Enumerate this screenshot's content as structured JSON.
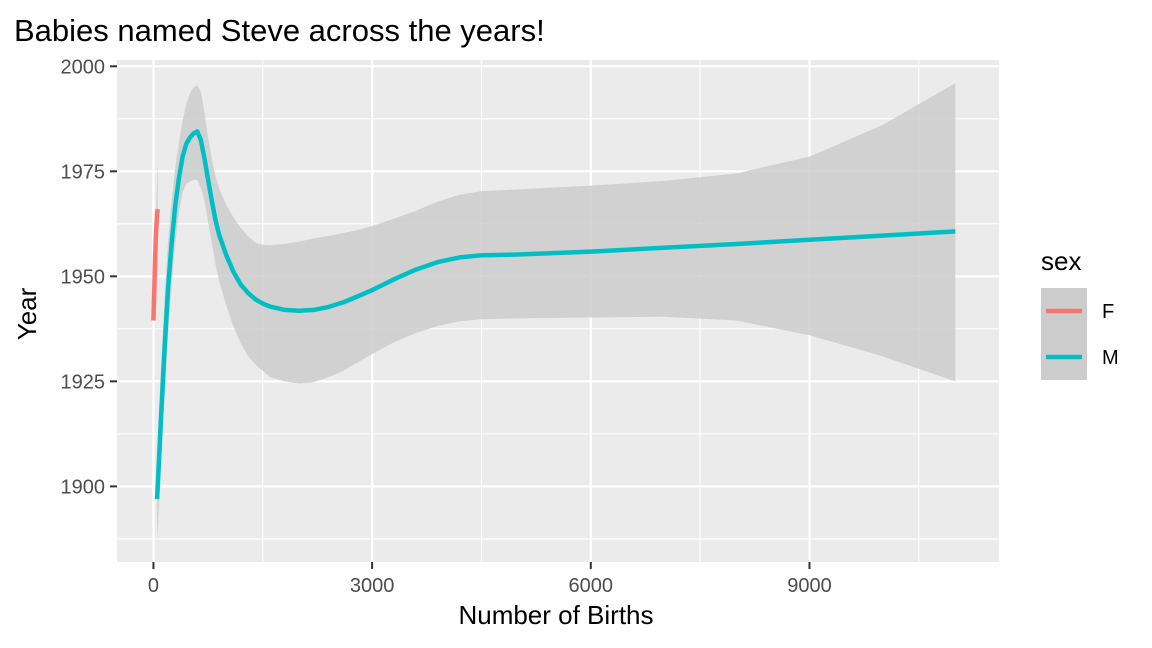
{
  "chart_data": {
    "type": "line",
    "title": "Babies named Steve across the years!",
    "xlabel": "Number of Births",
    "ylabel": "Year",
    "xlim": [
      -500,
      11600
    ],
    "ylim": [
      1882,
      2001.5
    ],
    "x_ticks": [
      0,
      3000,
      6000,
      9000
    ],
    "x_tick_labels": [
      "0",
      "3000",
      "6000",
      "9000"
    ],
    "y_ticks": [
      1900,
      1925,
      1950,
      1975,
      2000
    ],
    "y_tick_labels": [
      "1900",
      "1925",
      "1950",
      "1975",
      "2000"
    ],
    "grid": true,
    "legend": {
      "title": "sex",
      "position": "right",
      "entries": [
        "F",
        "M"
      ]
    },
    "colors": {
      "F": "#F8766D",
      "M": "#00BFC4",
      "band": "#CCCCCC",
      "panel": "#EBEBEB",
      "grid": "#FFFFFF"
    },
    "series": [
      {
        "name": "F",
        "x": [
          0,
          10,
          20,
          30,
          40,
          50,
          60
        ],
        "y": [
          1939.5,
          1946,
          1952,
          1958,
          1962,
          1965,
          1966
        ],
        "ci_low": [
          1938,
          1944,
          1950,
          1955,
          1957,
          1954,
          1950
        ],
        "ci_high": [
          1941,
          1948,
          1955,
          1962,
          1968,
          1973,
          1978
        ]
      },
      {
        "name": "M",
        "x": [
          50,
          100,
          150,
          200,
          250,
          300,
          350,
          400,
          450,
          500,
          550,
          600,
          650,
          700,
          750,
          800,
          850,
          900,
          1000,
          1100,
          1200,
          1300,
          1400,
          1500,
          1600,
          1800,
          2000,
          2200,
          2400,
          2600,
          2800,
          3000,
          3300,
          3600,
          3900,
          4200,
          4500,
          5000,
          6000,
          7000,
          8000,
          9000,
          10000,
          11000
        ],
        "y": [
          1897,
          1915,
          1932,
          1947,
          1958,
          1967,
          1973.5,
          1978.5,
          1981.5,
          1983,
          1984,
          1984.5,
          1982.5,
          1978,
          1973,
          1968,
          1963.5,
          1960,
          1955,
          1951,
          1948,
          1946,
          1944.5,
          1943.5,
          1942.8,
          1942,
          1941.8,
          1942,
          1942.7,
          1943.8,
          1945.2,
          1946.7,
          1949.3,
          1951.6,
          1953.4,
          1954.5,
          1955,
          1955.2,
          1955.9,
          1956.8,
          1957.7,
          1958.7,
          1959.7,
          1960.7
        ],
        "ci_low": [
          1887,
          1903,
          1920,
          1936,
          1948,
          1958,
          1965,
          1970,
          1972,
          1972.5,
          1973,
          1973,
          1971,
          1968,
          1963,
          1958,
          1953,
          1949,
          1943,
          1938,
          1934,
          1931,
          1929,
          1927.5,
          1926,
          1925,
          1924.5,
          1924.8,
          1926,
          1927.5,
          1929.5,
          1931.5,
          1934.3,
          1936.5,
          1938.2,
          1939.3,
          1939.8,
          1940,
          1940.2,
          1940.4,
          1939.5,
          1936,
          1931,
          1925
        ],
        "ci_high": [
          1907,
          1927,
          1944,
          1958,
          1968,
          1976,
          1982,
          1987,
          1991,
          1993.5,
          1995,
          1995.5,
          1994,
          1989,
          1983,
          1978,
          1974,
          1971,
          1967,
          1964,
          1961.5,
          1959.5,
          1958,
          1957.5,
          1957.4,
          1957.7,
          1958.3,
          1959,
          1959.6,
          1960.3,
          1961,
          1962,
          1963.7,
          1965.6,
          1967.8,
          1969.4,
          1970.3,
          1970.7,
          1971.6,
          1972.7,
          1974.5,
          1978.5,
          1986,
          1996
        ]
      }
    ]
  }
}
